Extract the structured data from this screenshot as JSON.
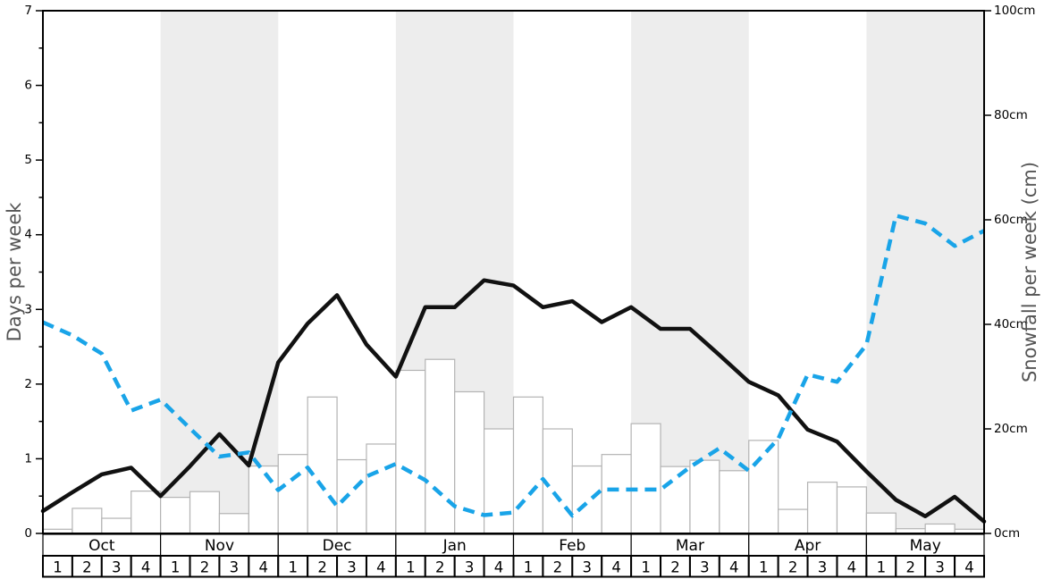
{
  "chart_data": {
    "type": "bar+line",
    "title": "",
    "x": {
      "months": [
        "Oct",
        "Nov",
        "Dec",
        "Jan",
        "Feb",
        "Mar",
        "Apr",
        "May"
      ],
      "weeks_per_month": 4,
      "week_labels": [
        "1",
        "2",
        "3",
        "4"
      ],
      "shaded_month_indices": [
        1,
        3,
        5,
        7
      ]
    },
    "left_axis": {
      "title": "Days per week",
      "min": 0,
      "max": 7,
      "major_step": 1,
      "minor_step": 0.5,
      "tick_labels": [
        "0",
        "1",
        "2",
        "3",
        "4",
        "5",
        "6",
        "7"
      ]
    },
    "right_axis": {
      "title": "Snowfall per week (cm)",
      "min": 0,
      "max": 100,
      "major_step": 20,
      "tick_labels": [
        "0cm",
        "20cm",
        "40cm",
        "60cm",
        "80cm",
        "100cm"
      ]
    },
    "series": [
      {
        "name": "snowfall-per-week-bars",
        "type": "bar",
        "axis": "right",
        "unit": "cm",
        "values": [
          0.8,
          4.8,
          2.9,
          8.1,
          6.9,
          8.0,
          3.8,
          12.9,
          15.1,
          26.1,
          14.1,
          17.1,
          31.2,
          33.3,
          27.1,
          20.0,
          26.1,
          20.0,
          12.9,
          15.1,
          21.0,
          12.8,
          14.0,
          12.0,
          17.8,
          4.6,
          9.8,
          8.9,
          3.9,
          0.9,
          1.8,
          0.8
        ]
      },
      {
        "name": "days-per-week-line",
        "type": "line",
        "style": "solid",
        "axis": "left",
        "unit": "days",
        "values": [
          0.3,
          0.55,
          0.79,
          0.88,
          0.5,
          0.9,
          1.33,
          0.91,
          2.29,
          2.81,
          3.19,
          2.53,
          2.1,
          3.03,
          3.03,
          3.39,
          3.32,
          3.03,
          3.11,
          2.83,
          3.03,
          2.74,
          2.74,
          2.39,
          2.03,
          1.85,
          1.39,
          1.23,
          0.83,
          0.45,
          0.23,
          0.49,
          0.16
        ]
      },
      {
        "name": "snowfall-trend-line",
        "type": "line",
        "style": "dashed",
        "axis": "right",
        "unit": "cm",
        "values": [
          40.4,
          37.9,
          34.4,
          23.5,
          25.6,
          20.1,
          14.7,
          15.5,
          8.3,
          12.6,
          5.2,
          10.9,
          13.3,
          10.2,
          5.2,
          3.5,
          4.0,
          10.4,
          3.4,
          8.4,
          8.4,
          8.4,
          12.7,
          16.3,
          12.0,
          18.1,
          30.4,
          29.0,
          36.1,
          60.8,
          59.3,
          55.0,
          57.9
        ]
      }
    ],
    "colors": {
      "black_line": "#111111",
      "blue_line": "#19a4e8",
      "bar_fill": "#ffffff",
      "bar_stroke": "#b3b3b3",
      "band": "#ededed",
      "axis_title": "#555555",
      "tick_label": "#000000",
      "table_border": "#000000",
      "plot_border": "#000000",
      "background": "#ffffff"
    }
  }
}
